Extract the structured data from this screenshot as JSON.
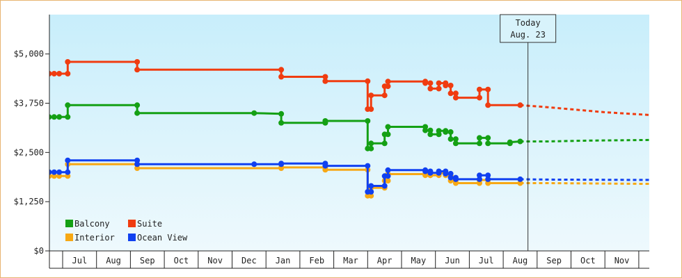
{
  "chart_data": {
    "type": "line",
    "title": "",
    "xlabel": "",
    "ylabel": "",
    "ylim": [
      0,
      6000
    ],
    "y_ticks": [
      "$0",
      "$1,250",
      "$2,500",
      "$3,750",
      "$5,000"
    ],
    "y_tick_values": [
      0,
      1250,
      2500,
      3750,
      5000
    ],
    "x_months": [
      "Jul",
      "Aug",
      "Sep",
      "Oct",
      "Nov",
      "Dec",
      "Jan",
      "Feb",
      "Mar",
      "Apr",
      "May",
      "Jun",
      "Jul",
      "Aug",
      "Sep",
      "Oct",
      "Nov"
    ],
    "x_range": [
      0,
      17.7
    ],
    "today": {
      "line1": "Today",
      "line2": "Aug. 23",
      "x": 13.73
    },
    "grid": false,
    "legend_placement": "bottom-left",
    "colors": {
      "background_top": "#c8eefb",
      "background_bottom": "#eef9fd"
    },
    "series": [
      {
        "name": "Balcony",
        "color": "#14a014",
        "points": [
          [
            -0.4,
            3400
          ],
          [
            -0.25,
            3400
          ],
          [
            -0.1,
            3400
          ],
          [
            0.15,
            3400
          ],
          [
            0.15,
            3700
          ],
          [
            2.2,
            3700
          ],
          [
            2.2,
            3500
          ],
          [
            5.65,
            3500
          ],
          [
            6.45,
            3480
          ],
          [
            6.45,
            3250
          ],
          [
            7.75,
            3250
          ],
          [
            7.75,
            3300
          ],
          [
            9.0,
            3300
          ],
          [
            9.0,
            2600
          ],
          [
            9.1,
            2600
          ],
          [
            9.1,
            2730
          ],
          [
            9.5,
            2730
          ],
          [
            9.5,
            2960
          ],
          [
            9.6,
            2960
          ],
          [
            9.6,
            3150
          ],
          [
            10.7,
            3150
          ],
          [
            10.7,
            3060
          ],
          [
            10.85,
            3060
          ],
          [
            10.85,
            2960
          ],
          [
            11.1,
            2960
          ],
          [
            11.1,
            3050
          ],
          [
            11.3,
            3050
          ],
          [
            11.3,
            3020
          ],
          [
            11.45,
            3020
          ],
          [
            11.45,
            2840
          ],
          [
            11.6,
            2840
          ],
          [
            11.6,
            2730
          ],
          [
            12.3,
            2730
          ],
          [
            12.3,
            2870
          ],
          [
            12.55,
            2870
          ],
          [
            12.55,
            2730
          ],
          [
            13.2,
            2730
          ],
          [
            13.2,
            2760
          ],
          [
            13.5,
            2780
          ]
        ],
        "forecast": [
          [
            13.5,
            2780
          ],
          [
            14.3,
            2780
          ],
          [
            15.5,
            2800
          ],
          [
            17.7,
            2820
          ]
        ]
      },
      {
        "name": "Suite",
        "color": "#f03c10",
        "points": [
          [
            -0.4,
            4500
          ],
          [
            -0.25,
            4500
          ],
          [
            -0.1,
            4500
          ],
          [
            0.15,
            4500
          ],
          [
            0.15,
            4800
          ],
          [
            2.2,
            4800
          ],
          [
            2.2,
            4600
          ],
          [
            6.45,
            4600
          ],
          [
            6.45,
            4420
          ],
          [
            7.75,
            4420
          ],
          [
            7.75,
            4310
          ],
          [
            9.0,
            4310
          ],
          [
            9.0,
            3600
          ],
          [
            9.1,
            3600
          ],
          [
            9.1,
            3950
          ],
          [
            9.5,
            3950
          ],
          [
            9.5,
            4180
          ],
          [
            9.6,
            4180
          ],
          [
            9.6,
            4300
          ],
          [
            10.7,
            4300
          ],
          [
            10.7,
            4260
          ],
          [
            10.85,
            4260
          ],
          [
            10.85,
            4120
          ],
          [
            11.1,
            4120
          ],
          [
            11.1,
            4260
          ],
          [
            11.3,
            4260
          ],
          [
            11.3,
            4200
          ],
          [
            11.45,
            4200
          ],
          [
            11.45,
            4000
          ],
          [
            11.6,
            4000
          ],
          [
            11.6,
            3890
          ],
          [
            12.3,
            3890
          ],
          [
            12.3,
            4100
          ],
          [
            12.55,
            4100
          ],
          [
            12.55,
            3700
          ],
          [
            13.5,
            3700
          ]
        ],
        "forecast": [
          [
            13.5,
            3700
          ],
          [
            14.3,
            3650
          ],
          [
            16.0,
            3520
          ],
          [
            17.7,
            3430
          ]
        ]
      },
      {
        "name": "Interior",
        "color": "#f7a814",
        "points": [
          [
            -0.4,
            1900
          ],
          [
            -0.25,
            1900
          ],
          [
            -0.1,
            1900
          ],
          [
            0.15,
            1900
          ],
          [
            0.15,
            2200
          ],
          [
            2.2,
            2200
          ],
          [
            2.2,
            2100
          ],
          [
            6.45,
            2100
          ],
          [
            6.45,
            2120
          ],
          [
            7.75,
            2120
          ],
          [
            7.75,
            2060
          ],
          [
            9.0,
            2060
          ],
          [
            9.0,
            1400
          ],
          [
            9.1,
            1400
          ],
          [
            9.1,
            1600
          ],
          [
            9.5,
            1600
          ],
          [
            9.5,
            1780
          ],
          [
            9.6,
            1780
          ],
          [
            9.6,
            1950
          ],
          [
            10.7,
            1950
          ],
          [
            10.7,
            1920
          ],
          [
            10.85,
            1920
          ],
          [
            10.85,
            1920
          ],
          [
            11.1,
            1920
          ],
          [
            11.1,
            1970
          ],
          [
            11.3,
            1970
          ],
          [
            11.3,
            1920
          ],
          [
            11.45,
            1920
          ],
          [
            11.45,
            1780
          ],
          [
            11.6,
            1780
          ],
          [
            11.6,
            1720
          ],
          [
            12.3,
            1720
          ],
          [
            12.3,
            1800
          ],
          [
            12.55,
            1800
          ],
          [
            12.55,
            1720
          ],
          [
            13.5,
            1720
          ]
        ],
        "forecast": [
          [
            13.5,
            1720
          ],
          [
            14.3,
            1720
          ],
          [
            17.7,
            1700
          ]
        ]
      },
      {
        "name": "Ocean View",
        "color": "#1040f0",
        "points": [
          [
            -0.4,
            2000
          ],
          [
            -0.25,
            2000
          ],
          [
            -0.1,
            2000
          ],
          [
            0.15,
            2000
          ],
          [
            0.15,
            2300
          ],
          [
            2.2,
            2300
          ],
          [
            2.2,
            2200
          ],
          [
            5.65,
            2200
          ],
          [
            6.45,
            2200
          ],
          [
            6.45,
            2220
          ],
          [
            7.75,
            2220
          ],
          [
            7.75,
            2160
          ],
          [
            9.0,
            2160
          ],
          [
            9.0,
            1500
          ],
          [
            9.1,
            1500
          ],
          [
            9.1,
            1650
          ],
          [
            9.5,
            1650
          ],
          [
            9.5,
            1900
          ],
          [
            9.6,
            1900
          ],
          [
            9.6,
            2050
          ],
          [
            10.7,
            2050
          ],
          [
            10.7,
            2020
          ],
          [
            10.85,
            2020
          ],
          [
            10.85,
            1980
          ],
          [
            11.1,
            1980
          ],
          [
            11.1,
            2020
          ],
          [
            11.3,
            2020
          ],
          [
            11.3,
            1960
          ],
          [
            11.45,
            1960
          ],
          [
            11.45,
            1860
          ],
          [
            11.6,
            1860
          ],
          [
            11.6,
            1820
          ],
          [
            12.3,
            1820
          ],
          [
            12.3,
            1920
          ],
          [
            12.55,
            1920
          ],
          [
            12.55,
            1820
          ],
          [
            13.5,
            1820
          ]
        ],
        "forecast": [
          [
            13.5,
            1820
          ],
          [
            14.3,
            1810
          ],
          [
            17.7,
            1800
          ]
        ]
      }
    ]
  }
}
